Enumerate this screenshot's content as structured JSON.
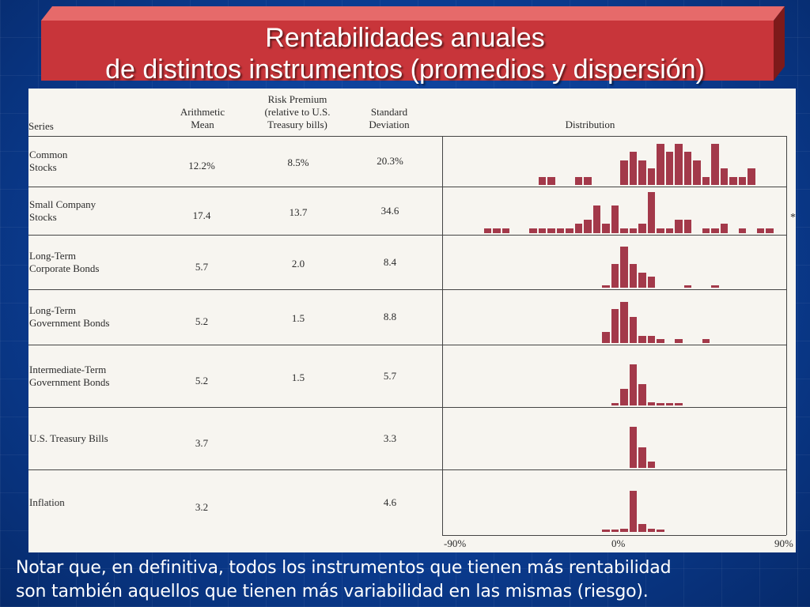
{
  "title": {
    "line1": "Rentabilidades  anuales",
    "line2": "de distintos instrumentos (promedios y dispersión)"
  },
  "table": {
    "headers": {
      "series": "Series",
      "mean": [
        "Arithmetic",
        "Mean"
      ],
      "premium": [
        "Risk Premium",
        "(relative to U.S.",
        "Treasury bills)"
      ],
      "std": [
        "Standard",
        "Deviation"
      ],
      "distribution": "Distribution"
    },
    "rows": [
      {
        "label": [
          "Common",
          "Stocks"
        ],
        "mean": "12.2%",
        "premium": "8.5%",
        "std": "20.3%"
      },
      {
        "label": [
          "Small Company",
          "Stocks"
        ],
        "mean": "17.4",
        "premium": "13.7",
        "std": "34.6"
      },
      {
        "label": [
          "Long-Term",
          "Corporate Bonds"
        ],
        "mean": "5.7",
        "premium": "2.0",
        "std": "8.4"
      },
      {
        "label": [
          "Long-Term",
          "Government Bonds"
        ],
        "mean": "5.2",
        "premium": "1.5",
        "std": "8.8"
      },
      {
        "label": [
          "Intermediate-Term",
          "Government Bonds"
        ],
        "mean": "5.2",
        "premium": "1.5",
        "std": "5.7"
      },
      {
        "label": [
          "U.S. Treasury Bills"
        ],
        "mean": "3.7",
        "premium": "",
        "std": "3.3"
      },
      {
        "label": [
          "Inflation"
        ],
        "mean": "3.2",
        "premium": "",
        "std": "4.6"
      }
    ],
    "footnote_mark": "*",
    "axis": {
      "left": "-90%",
      "center": "0%",
      "right": "90%"
    }
  },
  "chart_data": {
    "type": "bar",
    "xlabel": "",
    "xlim": [
      -90,
      90
    ],
    "bin_width_pct": 5,
    "bar_color": "#a3394a",
    "series": [
      {
        "name": "Common Stocks",
        "bins_from": -45,
        "counts": [
          1,
          1,
          0,
          0,
          1,
          1,
          0,
          0,
          0,
          3,
          4,
          3,
          2,
          5,
          4,
          5,
          4,
          3,
          1,
          5,
          2,
          1,
          1,
          2
        ]
      },
      {
        "name": "Small Company Stocks",
        "bins_from": -90,
        "counts": [
          0,
          0,
          0,
          1,
          1,
          1,
          0,
          0,
          1,
          1,
          1,
          1,
          1,
          2,
          3,
          6,
          2,
          6,
          1,
          1,
          2,
          9,
          1,
          1,
          3,
          3,
          0,
          1,
          1,
          2,
          0,
          1,
          0,
          1,
          1
        ]
      },
      {
        "name": "Long-Term Corporate Bonds",
        "bins_from": -10,
        "counts": [
          1,
          11,
          19,
          11,
          7,
          5,
          0,
          0,
          0,
          1,
          0,
          0,
          1
        ]
      },
      {
        "name": "Long-Term Government Bonds",
        "bins_from": -10,
        "counts": [
          3,
          9,
          11,
          7,
          2,
          2,
          1,
          0,
          1,
          0,
          0,
          1
        ]
      },
      {
        "name": "Intermediate-Term Government Bonds",
        "bins_from": -10,
        "counts": [
          0,
          1,
          10,
          25,
          13,
          2,
          1,
          1,
          1
        ]
      },
      {
        "name": "U.S. Treasury Bills",
        "bins_from": -5,
        "counts": [
          0,
          0,
          26,
          13,
          4
        ]
      },
      {
        "name": "Inflation",
        "bins_from": -15,
        "counts": [
          0,
          1,
          1,
          4,
          50,
          10,
          4,
          1
        ]
      }
    ]
  },
  "note": {
    "line1": "Notar que, en definitiva, todos los instrumentos que tienen más rentabilidad",
    "line2": "son también aquellos que tienen más variabilidad en las mismas (riesgo)."
  }
}
